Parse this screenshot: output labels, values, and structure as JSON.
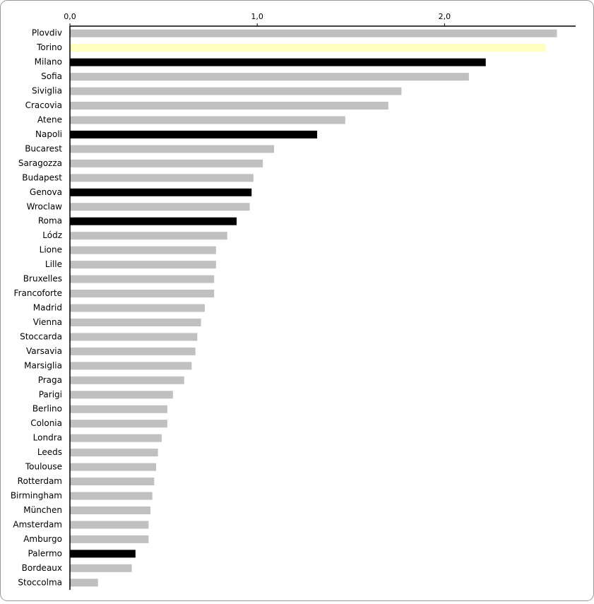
{
  "chart_data": {
    "type": "bar",
    "orientation": "horizontal",
    "categories": [
      "Plovdiv",
      "Torino",
      "Milano",
      "Sofia",
      "Siviglia",
      "Cracovia",
      "Atene",
      "Napoli",
      "Bucarest",
      "Saragozza",
      "Budapest",
      "Genova",
      "Wroclaw",
      "Roma",
      "Lódz",
      "Lione",
      "Lille",
      "Bruxelles",
      "Francoforte",
      "Madrid",
      "Vienna",
      "Stoccarda",
      "Varsavia",
      "Marsiglia",
      "Praga",
      "Parigi",
      "Berlino",
      "Colonia",
      "Londra",
      "Leeds",
      "Toulouse",
      "Rotterdam",
      "Birmingham",
      "München",
      "Amsterdam",
      "Amburgo",
      "Palermo",
      "Bordeaux",
      "Stoccolma"
    ],
    "values": [
      2.6,
      2.54,
      2.22,
      2.13,
      1.77,
      1.7,
      1.47,
      1.32,
      1.09,
      1.03,
      0.98,
      0.97,
      0.96,
      0.89,
      0.84,
      0.78,
      0.78,
      0.77,
      0.77,
      0.72,
      0.7,
      0.68,
      0.67,
      0.65,
      0.61,
      0.55,
      0.52,
      0.52,
      0.49,
      0.47,
      0.46,
      0.45,
      0.44,
      0.43,
      0.42,
      0.42,
      0.35,
      0.33,
      0.15
    ],
    "colors": [
      "#c0c0c0",
      "#ffffc0",
      "#000000",
      "#c0c0c0",
      "#c0c0c0",
      "#c0c0c0",
      "#c0c0c0",
      "#000000",
      "#c0c0c0",
      "#c0c0c0",
      "#c0c0c0",
      "#000000",
      "#c0c0c0",
      "#000000",
      "#c0c0c0",
      "#c0c0c0",
      "#c0c0c0",
      "#c0c0c0",
      "#c0c0c0",
      "#c0c0c0",
      "#c0c0c0",
      "#c0c0c0",
      "#c0c0c0",
      "#c0c0c0",
      "#c0c0c0",
      "#c0c0c0",
      "#c0c0c0",
      "#c0c0c0",
      "#c0c0c0",
      "#c0c0c0",
      "#c0c0c0",
      "#c0c0c0",
      "#c0c0c0",
      "#c0c0c0",
      "#c0c0c0",
      "#c0c0c0",
      "#000000",
      "#c0c0c0",
      "#c0c0c0"
    ],
    "xlim": [
      0,
      2.7
    ],
    "xticks": [
      {
        "value": 0,
        "label": "0,0"
      },
      {
        "value": 1,
        "label": "1,0"
      },
      {
        "value": 2,
        "label": "2,0"
      }
    ]
  }
}
